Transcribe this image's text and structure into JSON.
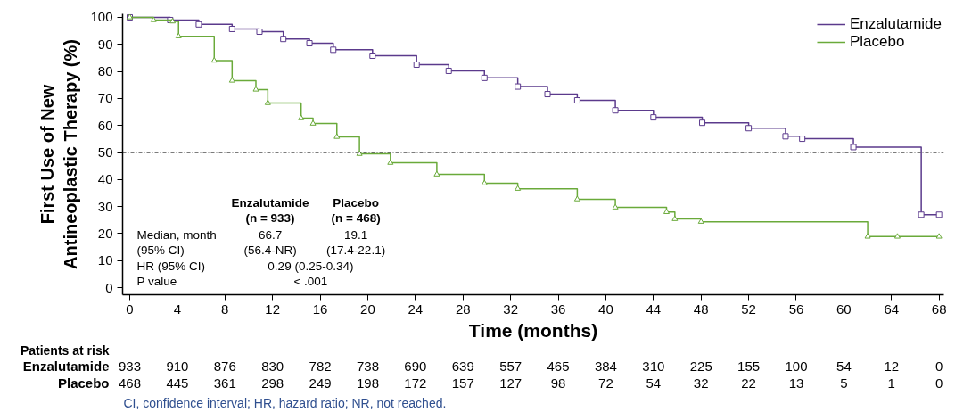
{
  "chart_data": {
    "type": "step",
    "xlabel": "Time (months)",
    "ylabel": "First Use of New\nAntineoplastic Therapy (%)",
    "xlim": [
      -0.6,
      68.4
    ],
    "ylim": [
      -2.6,
      101.3
    ],
    "xticks": [
      0,
      4,
      8,
      12,
      16,
      20,
      24,
      28,
      32,
      36,
      40,
      44,
      48,
      52,
      56,
      60,
      64,
      68
    ],
    "yticks": [
      0,
      10,
      20,
      30,
      40,
      50,
      60,
      70,
      80,
      90,
      100
    ],
    "grid": false,
    "legend": "top right",
    "ref_lines": [
      {
        "axis": "y",
        "value": 50,
        "line_style": "dotted",
        "color": "#000000"
      }
    ],
    "series": [
      {
        "name": "Enzalutamide",
        "color": "#5b3a8c",
        "marker": "square",
        "x": [
          0,
          3.4,
          5.8,
          8.6,
          10.9,
          12.9,
          15.1,
          17.1,
          20.4,
          24.1,
          26.8,
          29.8,
          32.6,
          35.1,
          37.6,
          40.8,
          44,
          48.1,
          52,
          55.1,
          56.5,
          60.8,
          66.5,
          68
        ],
        "values": [
          100,
          99,
          97.4,
          95.7,
          94.7,
          92,
          90.4,
          88,
          85.8,
          82.5,
          80.2,
          77.6,
          74.4,
          71.6,
          69.3,
          65.6,
          63,
          61,
          59,
          56,
          55.1,
          52,
          27,
          27
        ]
      },
      {
        "name": "Placebo",
        "color": "#6aaa3a",
        "marker": "triangle",
        "x": [
          0,
          2,
          3.6,
          4.1,
          7.1,
          8.6,
          10.6,
          11.6,
          14.4,
          15.4,
          17.4,
          19.3,
          21.9,
          25.8,
          29.8,
          32.6,
          37.6,
          40.8,
          45.1,
          45.8,
          48,
          62,
          64.5,
          68
        ],
        "values": [
          100,
          99,
          98.5,
          93,
          84,
          76.6,
          73.3,
          68.3,
          62.7,
          60.7,
          55.8,
          49.5,
          46.2,
          41.9,
          38.6,
          36.6,
          32.7,
          29.7,
          28,
          25.4,
          24.4,
          18.9,
          18.9,
          18.9
        ]
      }
    ],
    "annotations": [
      "Enzalutamide",
      "(n = 933)",
      "Placebo",
      "(n = 468)",
      "Median, month",
      "66.7",
      "19.1",
      "(95% CI)",
      "(56.4-NR)",
      "(17.4-22.1)",
      "HR (95% CI)",
      "0.29 (0.25-0.34)",
      "P value",
      "< .001",
      "Patients at risk",
      "Enzalutamide 933 910 876 830 782 738 690 639 557 465 384 310 225 155 100 54 12 0",
      "Placebo 468 445 361 298 249 198 172 157 127 98 72 54 32 22 13 5 1 0",
      "CI, confidence interval; HR, hazard ratio; NR, not reached."
    ]
  }
}
